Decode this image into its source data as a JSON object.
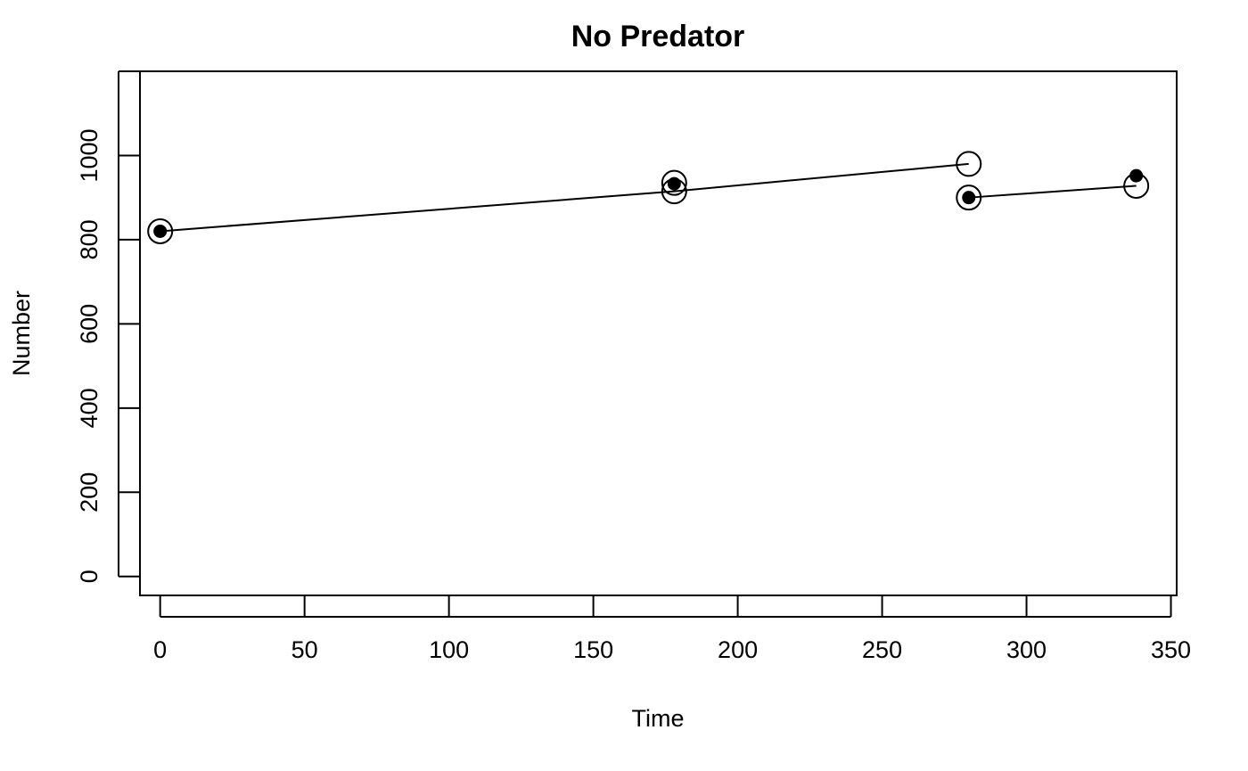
{
  "chart_data": {
    "type": "scatter",
    "title": "No Predator",
    "xlabel": "Time",
    "ylabel": "Number",
    "xlim": [
      -7,
      352
    ],
    "ylim": [
      -45,
      1200
    ],
    "xticks": [
      0,
      50,
      100,
      150,
      200,
      250,
      300,
      350
    ],
    "yticks": [
      0,
      200,
      400,
      600,
      800,
      1000
    ],
    "grid": false,
    "legend": "none",
    "open_points": [
      {
        "x": 0,
        "y": 820
      },
      {
        "x": 178,
        "y": 935
      },
      {
        "x": 178,
        "y": 915
      },
      {
        "x": 280,
        "y": 980
      },
      {
        "x": 280,
        "y": 900
      },
      {
        "x": 338,
        "y": 928
      }
    ],
    "filled_points": [
      {
        "x": 0,
        "y": 820
      },
      {
        "x": 178,
        "y": 933
      },
      {
        "x": 280,
        "y": 900
      },
      {
        "x": 338,
        "y": 952
      }
    ],
    "lines": [
      [
        {
          "x": 0,
          "y": 820
        },
        {
          "x": 178,
          "y": 915
        },
        {
          "x": 280,
          "y": 980
        }
      ],
      [
        {
          "x": 280,
          "y": 900
        },
        {
          "x": 338,
          "y": 928
        }
      ]
    ]
  }
}
